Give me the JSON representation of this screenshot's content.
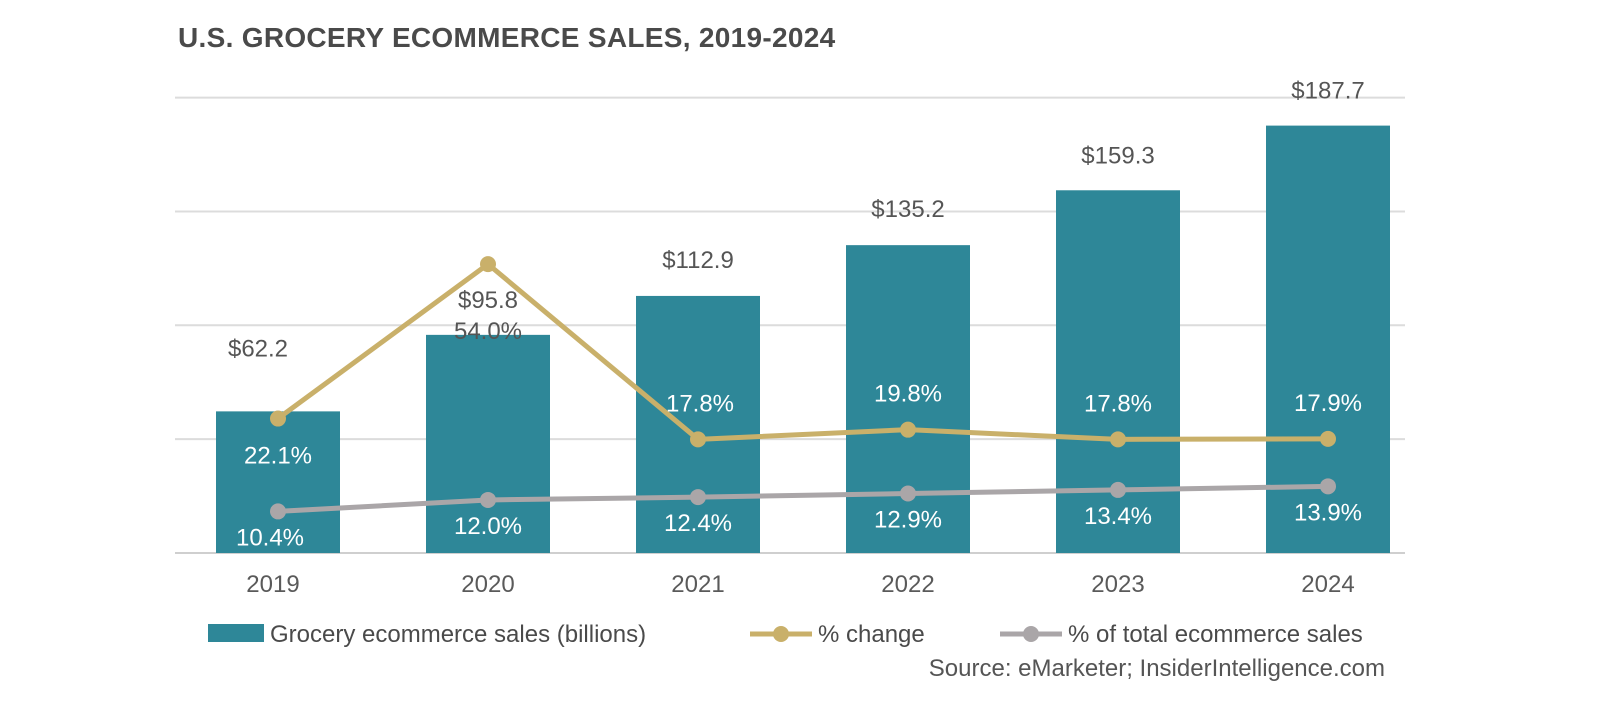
{
  "title": "U.S. GROCERY ECOMMERCE SALES, 2019-2024",
  "source": "Source: eMarketer; InsiderIntelligence.com",
  "colors": {
    "bar": "#2e8798",
    "change_line": "#c9b06a",
    "share_line": "#aaa6a8",
    "grid": "#dcdcdc",
    "title": "#4a4a4a"
  },
  "chart_data": {
    "type": "bar",
    "title": "U.S. GROCERY ECOMMERCE SALES, 2019-2024",
    "categories": [
      "2019",
      "2020",
      "2021",
      "2022",
      "2023",
      "2024"
    ],
    "ylim": [
      0,
      200
    ],
    "grid": true,
    "legend_position": "bottom",
    "series": [
      {
        "name": "Grocery ecommerce sales (billions)",
        "kind": "bar",
        "values": [
          62.2,
          95.8,
          112.9,
          135.2,
          159.3,
          187.7
        ],
        "labels": [
          "$62.2",
          "$95.8",
          "$112.9",
          "$135.2",
          "$159.3",
          "$187.7"
        ]
      },
      {
        "name": "% change",
        "kind": "line",
        "values": [
          22.1,
          54.0,
          17.8,
          19.8,
          17.8,
          17.9
        ],
        "labels": [
          "22.1%",
          "54.0%",
          "17.8%",
          "19.8%",
          "17.8%",
          "17.9%"
        ]
      },
      {
        "name": "% of total ecommerce sales",
        "kind": "line",
        "values": [
          10.4,
          12.0,
          12.4,
          12.9,
          13.4,
          13.9
        ],
        "labels": [
          "10.4%",
          "12.0%",
          "12.4%",
          "12.9%",
          "13.4%",
          "13.9%"
        ]
      }
    ]
  }
}
